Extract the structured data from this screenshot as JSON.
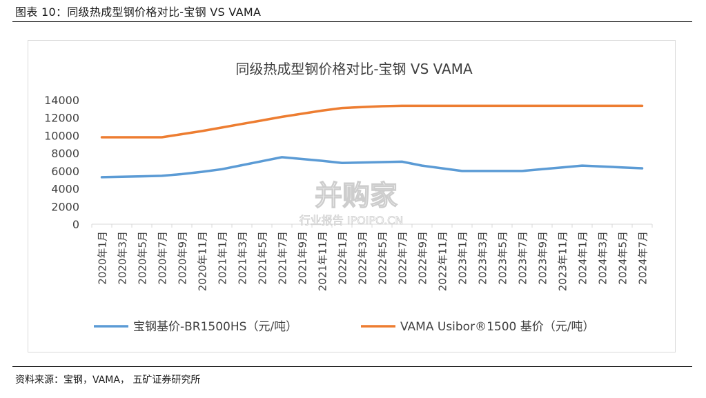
{
  "caption": "图表 10：同级热成型钢价格对比-宝钢 VS VAMA",
  "source": "资料来源：宝钢，VAMA， 五矿证券研究所",
  "watermark": {
    "brand": "并购家",
    "sub": "行业报告 IPOIPO.CN"
  },
  "colors": {
    "series1": "#5B9BD5",
    "series2": "#ED7D31",
    "axis": "#d9d9d9",
    "text": "#404040"
  },
  "chart_data": {
    "type": "line",
    "title": "同级热成型钢价格对比-宝钢 VS VAMA",
    "xlabel": "",
    "ylabel": "",
    "ylim": [
      0,
      14000
    ],
    "yticks": [
      0,
      2000,
      4000,
      6000,
      8000,
      10000,
      12000,
      14000
    ],
    "grid": false,
    "legend": "bottom",
    "categories": [
      "2020年1月",
      "2020年3月",
      "2020年5月",
      "2020年7月",
      "2020年9月",
      "2020年11月",
      "2021年1月",
      "2021年3月",
      "2021年5月",
      "2021年7月",
      "2021年9月",
      "2021年11月",
      "2022年1月",
      "2022年3月",
      "2022年5月",
      "2022年7月",
      "2022年9月",
      "2022年11月",
      "2023年1月",
      "2023年3月",
      "2023年5月",
      "2023年7月",
      "2023年9月",
      "2023年11月",
      "2024年1月",
      "2024年3月",
      "2024年5月",
      "2024年7月"
    ],
    "series": [
      {
        "name": "宝钢基价-BR1500HS（元/吨）",
        "values": [
          5300,
          5350,
          5400,
          5450,
          5650,
          5900,
          6200,
          6650,
          7100,
          7550,
          7350,
          7150,
          6900,
          6950,
          7000,
          7050,
          6600,
          6300,
          6000,
          6000,
          6000,
          6000,
          6200,
          6400,
          6600,
          6500,
          6400,
          6300
        ]
      },
      {
        "name": "VAMA Usibor®1500 基价（元/吨）",
        "values": [
          9800,
          9800,
          9800,
          9800,
          10150,
          10500,
          10900,
          11300,
          11700,
          12100,
          12450,
          12800,
          13100,
          13200,
          13300,
          13350,
          13350,
          13350,
          13350,
          13350,
          13350,
          13350,
          13350,
          13350,
          13350,
          13350,
          13350,
          13350
        ]
      }
    ]
  }
}
